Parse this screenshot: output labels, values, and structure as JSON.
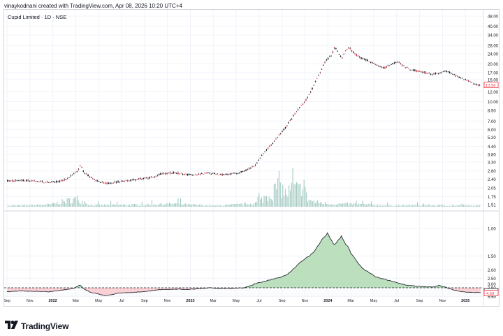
{
  "credit_line": "vinaykodnani created with TradingView.com, Apr 08, 2026 10:20 UTC+4",
  "symbol_title": "Cupid Limited · 1D · NSE",
  "brand": {
    "name": "TradingView",
    "logo_icon": "tradingview-logo-icon"
  },
  "colors": {
    "candle": "#f23645",
    "wick": "#131722",
    "volume": "#9cc7be",
    "grid": "#f0f3fa",
    "border": "#d1d4dc",
    "ind_positive_fill": "#a5d6a7",
    "ind_negative_fill": "#f8c9ce",
    "ind_line": "#131722",
    "price_label": "#f23645"
  },
  "chart_data": [
    {
      "type": "candlestick",
      "title": "Cupid Limited · 1D · NSE",
      "y_scale": "log",
      "y_ticks": [
        "48.00",
        "40.00",
        "34.00",
        "28.00",
        "24.00",
        "20.00",
        "17.00",
        "15.00",
        "12.00",
        "10.00",
        "8.50",
        "7.00",
        "6.00",
        "5.20",
        "4.40",
        "3.80",
        "3.30",
        "2.80",
        "2.40",
        "2.05",
        "1.75",
        "1.51"
      ],
      "ylim": [
        1.45,
        50
      ],
      "last_price_label": "13.58",
      "x_ticks": [
        "Sep",
        "Nov",
        "2022",
        "Mar",
        "May",
        "Jul",
        "Sep",
        "Nov",
        "2023",
        "Mar",
        "May",
        "Jul",
        "Sep",
        "Nov",
        "2024",
        "Mar",
        "May",
        "Jul",
        "Sep",
        "Nov",
        "2025"
      ],
      "x_ticks_bold": [
        "2022",
        "2023",
        "2024",
        "2025"
      ],
      "price_path": [
        [
          0,
          2.35
        ],
        [
          2,
          2.36
        ],
        [
          4,
          2.32
        ],
        [
          6,
          2.26
        ],
        [
          8,
          2.35
        ],
        [
          9,
          2.52
        ],
        [
          10,
          2.76
        ],
        [
          10.5,
          3.1
        ],
        [
          11,
          2.7
        ],
        [
          12,
          2.5
        ],
        [
          13,
          2.3
        ],
        [
          14,
          2.22
        ],
        [
          16,
          2.3
        ],
        [
          18,
          2.38
        ],
        [
          20,
          2.45
        ],
        [
          21,
          2.5
        ],
        [
          22,
          2.65
        ],
        [
          24,
          2.72
        ],
        [
          25,
          2.65
        ],
        [
          27,
          2.6
        ],
        [
          29,
          2.7
        ],
        [
          31,
          2.62
        ],
        [
          33,
          2.68
        ],
        [
          34,
          2.8
        ],
        [
          35.5,
          3.05
        ],
        [
          36,
          3.4
        ],
        [
          37,
          4.0
        ],
        [
          38,
          4.6
        ],
        [
          39,
          5.4
        ],
        [
          40,
          6.3
        ],
        [
          41,
          7.6
        ],
        [
          42,
          9.0
        ],
        [
          43,
          10.5
        ],
        [
          44,
          13.5
        ],
        [
          45,
          17.5
        ],
        [
          45.5,
          20.5
        ],
        [
          46.5,
          23.5
        ],
        [
          47,
          27.5
        ],
        [
          47.5,
          24.5
        ],
        [
          48,
          22.0
        ],
        [
          48.5,
          25.5
        ],
        [
          49,
          27.0
        ],
        [
          50,
          23.5
        ],
        [
          51,
          22.0
        ],
        [
          52,
          21.0
        ],
        [
          53,
          19.5
        ],
        [
          54,
          18.5
        ],
        [
          55,
          19.8
        ],
        [
          56,
          21.0
        ],
        [
          57,
          19.0
        ],
        [
          58,
          18.0
        ],
        [
          59,
          17.5
        ],
        [
          60,
          17.0
        ],
        [
          61,
          16.5
        ],
        [
          62,
          16.8
        ],
        [
          63,
          17.5
        ],
        [
          64,
          16.5
        ],
        [
          65,
          15.5
        ],
        [
          66,
          14.8
        ],
        [
          67,
          13.8
        ],
        [
          68,
          13.6
        ]
      ],
      "volume_series_name": "Volume",
      "volume_path": [
        [
          0,
          0.1
        ],
        [
          6,
          0.2
        ],
        [
          8,
          0.5
        ],
        [
          10,
          0.8
        ],
        [
          11,
          0.4
        ],
        [
          12,
          0.15
        ],
        [
          20,
          0.2
        ],
        [
          24,
          0.3
        ],
        [
          26,
          0.2
        ],
        [
          30,
          0.1
        ],
        [
          34,
          0.25
        ],
        [
          36,
          0.4
        ],
        [
          37,
          1.0
        ],
        [
          38,
          1.3
        ],
        [
          39,
          2.3
        ],
        [
          40,
          1.2
        ],
        [
          41,
          1.9
        ],
        [
          42,
          1.6
        ],
        [
          42.5,
          2.8
        ],
        [
          43,
          0.8
        ],
        [
          44,
          0.5
        ],
        [
          46,
          0.3
        ],
        [
          50,
          0.25
        ],
        [
          55,
          0.12
        ],
        [
          60,
          0.15
        ],
        [
          64,
          0.12
        ],
        [
          68,
          0.1
        ]
      ]
    },
    {
      "type": "area",
      "description_series": "indicator",
      "y_scale": "reciprocal",
      "y_ticks": [
        "1.00",
        "1.50",
        "2.00",
        "2.50",
        "3.00",
        "3.50",
        "4.00",
        "4.50",
        "5.00",
        "5.50"
      ],
      "ylim": [
        0.85,
        5.95
      ],
      "baseline": 3.5,
      "value_labels": [
        "4.09",
        "4.50"
      ],
      "path": [
        [
          0,
          4.2
        ],
        [
          2,
          4.05
        ],
        [
          4,
          4.1
        ],
        [
          6,
          4.2
        ],
        [
          8,
          3.85
        ],
        [
          9.5,
          3.6
        ],
        [
          10.5,
          3.1
        ],
        [
          11,
          3.6
        ],
        [
          12,
          4.3
        ],
        [
          13,
          4.7
        ],
        [
          14,
          5.2
        ],
        [
          15,
          4.9
        ],
        [
          16,
          4.5
        ],
        [
          18,
          4.35
        ],
        [
          20,
          4.1
        ],
        [
          21,
          3.95
        ],
        [
          22,
          3.8
        ],
        [
          24,
          3.7
        ],
        [
          26,
          3.75
        ],
        [
          28,
          3.6
        ],
        [
          29,
          3.5
        ],
        [
          30,
          3.55
        ],
        [
          32,
          3.6
        ],
        [
          34,
          3.5
        ],
        [
          35,
          3.2
        ],
        [
          36,
          2.9
        ],
        [
          38,
          2.6
        ],
        [
          40,
          2.3
        ],
        [
          41,
          2.0
        ],
        [
          42,
          1.7
        ],
        [
          44,
          1.4
        ],
        [
          45,
          1.2
        ],
        [
          46,
          1.05
        ],
        [
          47,
          1.25
        ],
        [
          48,
          1.1
        ],
        [
          49,
          1.3
        ],
        [
          50,
          1.6
        ],
        [
          51,
          1.9
        ],
        [
          53,
          2.4
        ],
        [
          55,
          2.7
        ],
        [
          57,
          3.1
        ],
        [
          59,
          3.3
        ],
        [
          61,
          3.4
        ],
        [
          62,
          3.2
        ],
        [
          63,
          3.4
        ],
        [
          64,
          3.8
        ],
        [
          65,
          4.1
        ],
        [
          66,
          4.3
        ],
        [
          68,
          4.4
        ]
      ]
    }
  ]
}
